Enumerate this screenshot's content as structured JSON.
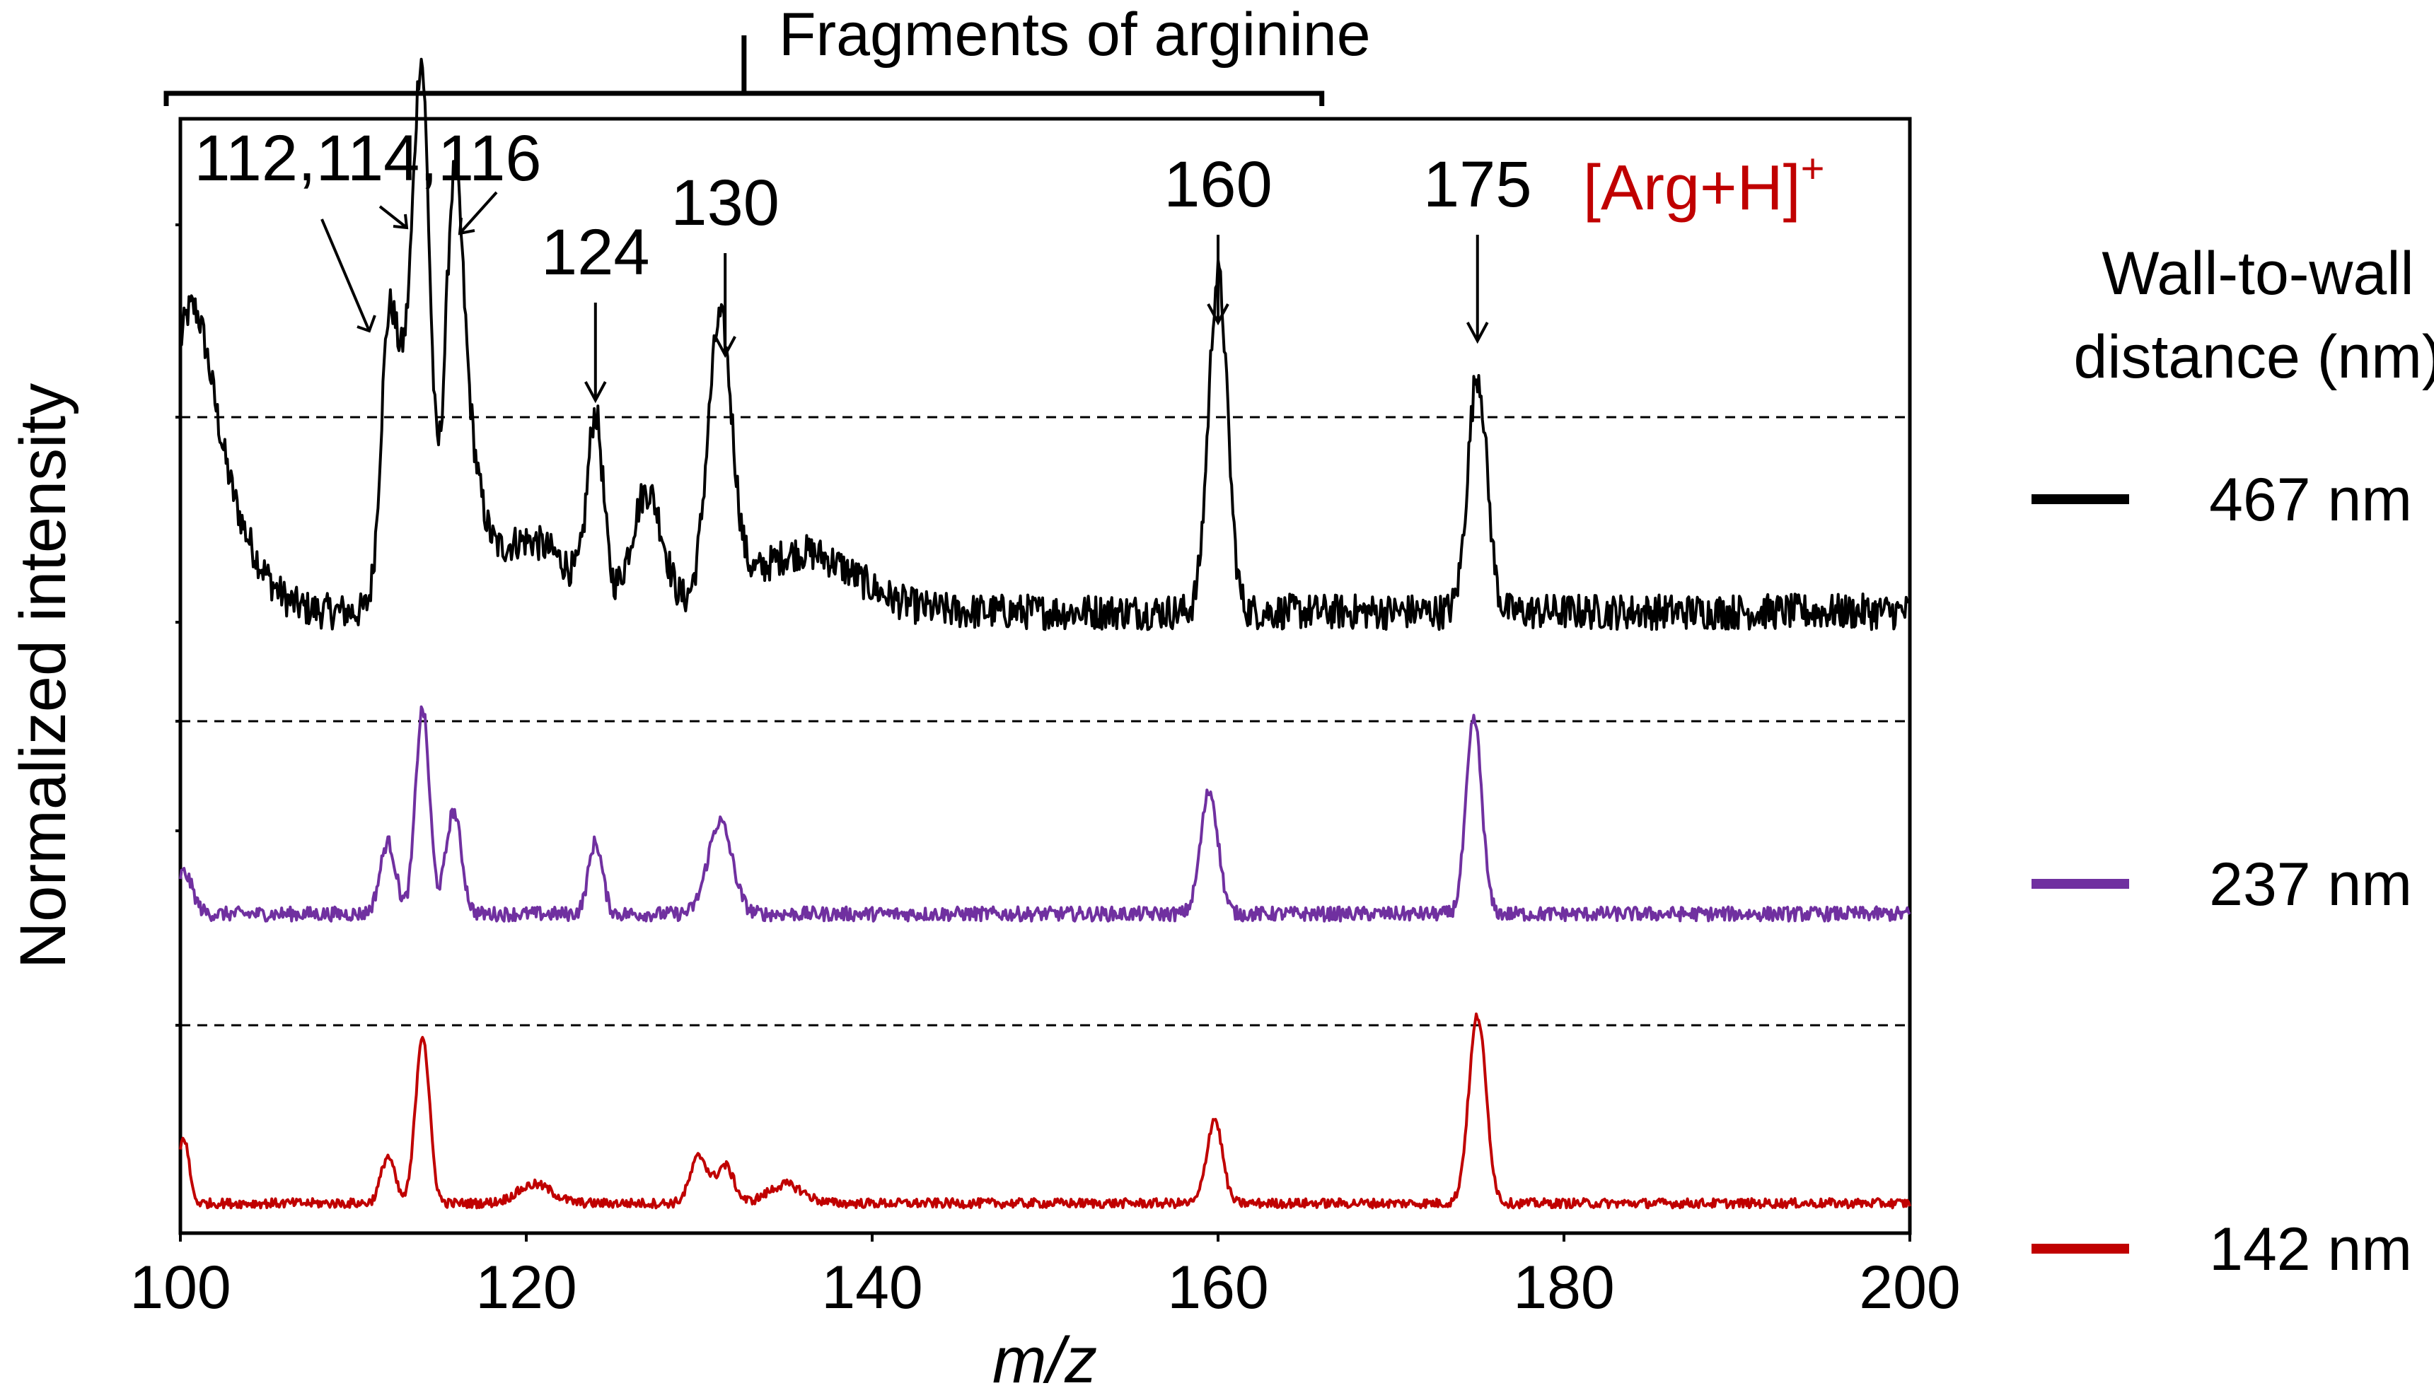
{
  "chart_data": {
    "type": "line",
    "title": "",
    "xlabel": "m/z",
    "ylabel": "Normalized intensity",
    "xlim": [
      100,
      200
    ],
    "xticks": [
      "100",
      "120",
      "140",
      "160",
      "180",
      "200"
    ],
    "grid": false,
    "legend": {
      "title_line1": "Wall-to-wall",
      "title_line2": "distance (nm)",
      "placement": "right"
    },
    "bracket_label": "Fragments of arginine",
    "bracket_range": [
      100,
      166
    ],
    "annotations": [
      {
        "label": "112,114,116",
        "x": 114
      },
      {
        "label": "124",
        "x": 124
      },
      {
        "label": "130",
        "x": 131.5
      },
      {
        "label": "160",
        "x": 160
      },
      {
        "label": "175",
        "x": 175
      }
    ],
    "ion_label": {
      "text": "[Arg+H]",
      "superscript": "+",
      "color": "#c00000"
    },
    "series": [
      {
        "name": "467 nm",
        "color": "#000000",
        "baseline": 0.08,
        "noise": 0.045,
        "peaks": [
          {
            "x": 100.5,
            "h": 0.55,
            "w": 1.2
          },
          {
            "x": 102,
            "h": 0.28,
            "w": 2.0
          },
          {
            "x": 112,
            "h": 0.55,
            "w": 0.45
          },
          {
            "x": 113.2,
            "h": 0.6,
            "w": 0.8
          },
          {
            "x": 114,
            "h": 1.0,
            "w": 0.45
          },
          {
            "x": 115.8,
            "h": 0.82,
            "w": 0.5
          },
          {
            "x": 116.5,
            "h": 0.35,
            "w": 0.8
          },
          {
            "x": 120,
            "h": 0.18,
            "w": 2.5
          },
          {
            "x": 124,
            "h": 0.45,
            "w": 0.45
          },
          {
            "x": 127,
            "h": 0.3,
            "w": 0.9
          },
          {
            "x": 131.2,
            "h": 0.7,
            "w": 0.7
          },
          {
            "x": 136,
            "h": 0.15,
            "w": 3.0
          },
          {
            "x": 160,
            "h": 0.85,
            "w": 0.55
          },
          {
            "x": 175,
            "h": 0.6,
            "w": 0.55
          }
        ]
      },
      {
        "name": "237 nm",
        "color": "#7030a0",
        "baseline": 0.06,
        "noise": 0.035,
        "peaks": [
          {
            "x": 100.2,
            "h": 0.2,
            "w": 0.5
          },
          {
            "x": 112,
            "h": 0.35,
            "w": 0.45
          },
          {
            "x": 114,
            "h": 1.0,
            "w": 0.4
          },
          {
            "x": 115.8,
            "h": 0.5,
            "w": 0.45
          },
          {
            "x": 124,
            "h": 0.35,
            "w": 0.4
          },
          {
            "x": 131.2,
            "h": 0.45,
            "w": 0.7
          },
          {
            "x": 159.5,
            "h": 0.6,
            "w": 0.5
          },
          {
            "x": 174.8,
            "h": 0.95,
            "w": 0.45
          }
        ]
      },
      {
        "name": "142 nm",
        "color": "#c00000",
        "baseline": 0.05,
        "noise": 0.025,
        "peaks": [
          {
            "x": 100.2,
            "h": 0.35,
            "w": 0.3
          },
          {
            "x": 112,
            "h": 0.25,
            "w": 0.4
          },
          {
            "x": 114,
            "h": 0.9,
            "w": 0.4
          },
          {
            "x": 120.5,
            "h": 0.1,
            "w": 1.0
          },
          {
            "x": 130,
            "h": 0.25,
            "w": 0.5
          },
          {
            "x": 131.5,
            "h": 0.2,
            "w": 0.5
          },
          {
            "x": 135,
            "h": 0.1,
            "w": 1.0
          },
          {
            "x": 159.8,
            "h": 0.45,
            "w": 0.45
          },
          {
            "x": 175,
            "h": 1.0,
            "w": 0.5
          }
        ]
      }
    ]
  }
}
